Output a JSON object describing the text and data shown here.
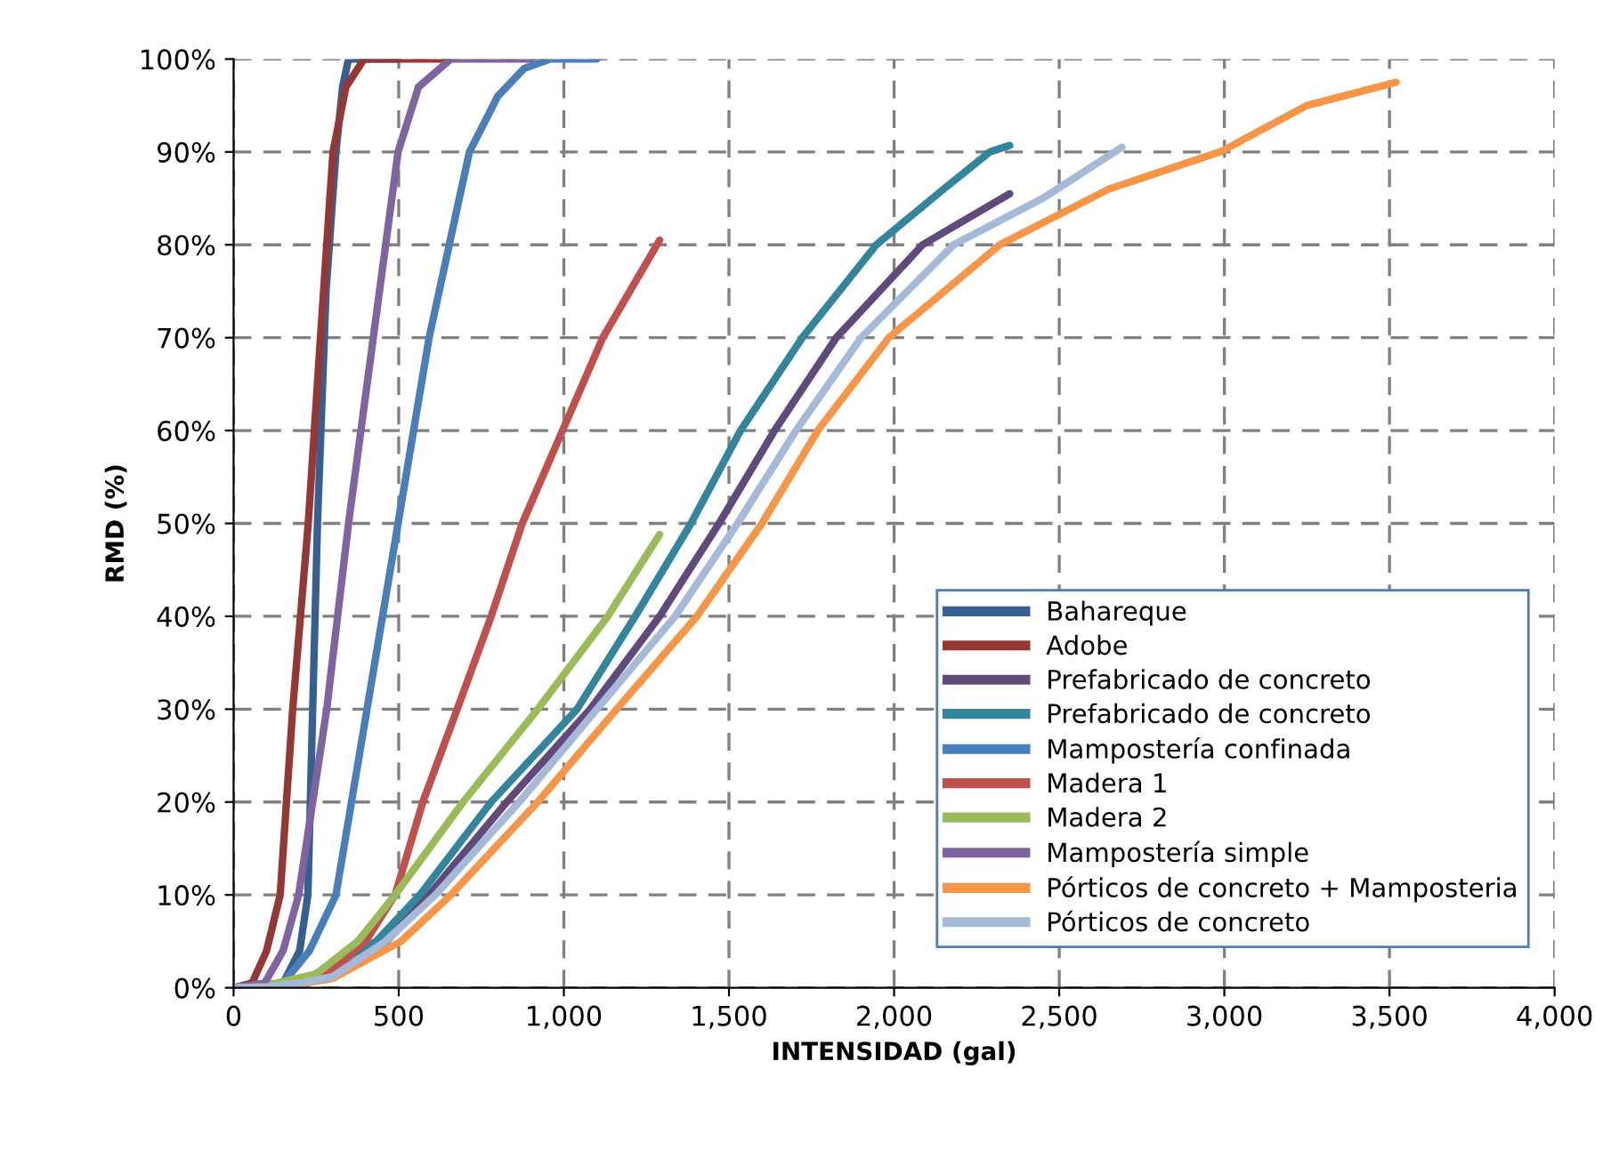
{
  "chart_data": {
    "type": "line",
    "xlabel": "INTENSIDAD (gal)",
    "ylabel": "RMD (%)",
    "xlim": [
      0,
      4000
    ],
    "xticks": [
      0,
      {
        "value": 500,
        "label": "500"
      },
      {
        "value": 1000,
        "label": "1,000"
      },
      {
        "value": 1500,
        "label": "1,500"
      },
      {
        "value": 2000,
        "label": "2,000"
      },
      {
        "value": 2500,
        "label": "2,500"
      },
      {
        "value": 3000,
        "label": "3,000"
      },
      {
        "value": 3500,
        "label": "3,500"
      },
      {
        "value": 4000,
        "label": "4,000"
      }
    ],
    "ylim": [
      0,
      100
    ],
    "yticks": [
      {
        "value": 0,
        "label": "0%"
      },
      {
        "value": 10,
        "label": "10%"
      },
      {
        "value": 20,
        "label": "20%"
      },
      {
        "value": 30,
        "label": "30%"
      },
      {
        "value": 40,
        "label": "40%"
      },
      {
        "value": 50,
        "label": "50%"
      },
      {
        "value": 60,
        "label": "60%"
      },
      {
        "value": 70,
        "label": "70%"
      },
      {
        "value": 80,
        "label": "80%"
      },
      {
        "value": 90,
        "label": "90%"
      },
      {
        "value": 100,
        "label": "100%"
      }
    ],
    "grid": true,
    "legend": "bottom right",
    "marker": "none",
    "line_style": "solid",
    "series": [
      {
        "name": "Bahareque",
        "color": "#376092",
        "x": [
          0,
          150,
          200,
          225,
          254,
          280,
          310,
          330,
          348,
          400,
          500
        ],
        "values": [
          0,
          0.5,
          4,
          10,
          50,
          75,
          90,
          97,
          100,
          100,
          100
        ]
      },
      {
        "name": "Adobe",
        "color": "#953735",
        "x": [
          0,
          56,
          100,
          141,
          179,
          226,
          263,
          301,
          340,
          395,
          500,
          650
        ],
        "values": [
          0,
          0.5,
          4,
          10,
          30,
          50,
          70,
          90,
          97,
          100,
          100,
          100
        ]
      },
      {
        "name": "Prefabricado de concreto",
        "color": "#604a7b",
        "x": [
          0,
          100,
          200,
          300,
          450,
          592,
          827,
          1080,
          1290,
          1470,
          1638,
          1825,
          2086,
          2350
        ],
        "values": [
          0,
          0.1,
          0.5,
          1.5,
          4.5,
          10,
          20,
          30,
          40,
          50,
          60,
          70,
          80,
          85.5
        ]
      },
      {
        "name": "Prefabricado de concreto",
        "color": "#31859c",
        "x": [
          0,
          100,
          200,
          432,
          564,
          780,
          1040,
          1216,
          1385,
          1535,
          1722,
          1946,
          2150,
          2290,
          2350
        ],
        "values": [
          0,
          0.1,
          0.6,
          5,
          10,
          20,
          30,
          40,
          50,
          60,
          70,
          80,
          86,
          90,
          90.7
        ]
      },
      {
        "name": "Mampostería confinada",
        "color": "#4a7ebb",
        "x": [
          0,
          150,
          230,
          310,
          404,
          498,
          592,
          714,
          800,
          880,
          959,
          1100
        ],
        "values": [
          0,
          0.5,
          4,
          10,
          30,
          50,
          70,
          90,
          96,
          99,
          100,
          100
        ]
      },
      {
        "name": "Madera 1",
        "color": "#c0504d",
        "x": [
          0,
          190,
          300,
          400,
          489,
          573,
          677,
          780,
          874,
          996,
          1118,
          1200,
          1290
        ],
        "values": [
          0,
          0.5,
          2,
          5,
          10,
          20,
          30,
          40,
          50,
          60,
          70,
          75,
          80.5
        ]
      },
      {
        "name": "Madera 2",
        "color": "#9bbb59",
        "x": [
          0,
          130,
          250,
          376,
          489,
          695,
          921,
          1133,
          1290
        ],
        "values": [
          0,
          0.5,
          1.5,
          5,
          10,
          20,
          30,
          40,
          48.8
        ]
      },
      {
        "name": "Mampostería simple",
        "color": "#8064a2",
        "x": [
          0,
          94,
          150,
          197,
          282,
          348,
          423,
          498,
          560,
          658,
          750,
          900
        ],
        "values": [
          0,
          0.5,
          4,
          10,
          30,
          50,
          70,
          90,
          97,
          100,
          100,
          100
        ]
      },
      {
        "name": "Pórticos de concreto + Mamposteria",
        "color": "#f79646",
        "x": [
          0,
          100,
          200,
          300,
          507,
          658,
          921,
          1160,
          1403,
          1600,
          1769,
          1984,
          2320,
          2650,
          2987,
          3250,
          3520
        ],
        "values": [
          0,
          0.1,
          0.4,
          1,
          5,
          10,
          20,
          30,
          40,
          50,
          60,
          70,
          80,
          86,
          90,
          95,
          97.5
        ]
      },
      {
        "name": "Pórticos de concreto",
        "color": "#a7b9d9",
        "x": [
          0,
          100,
          200,
          300,
          460,
          611,
          865,
          1100,
          1337,
          1526,
          1703,
          1900,
          2180,
          2450,
          2690
        ],
        "values": [
          0,
          0.1,
          0.5,
          1.2,
          5,
          10,
          20,
          30,
          40,
          50,
          60,
          70,
          80,
          85,
          90.5
        ]
      }
    ]
  }
}
